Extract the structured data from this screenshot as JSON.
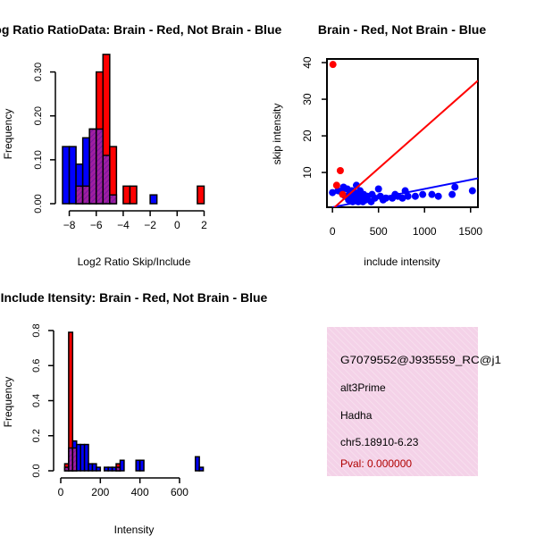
{
  "colors": {
    "red": "#ff0000",
    "blue": "#0000ff",
    "overlap": "#9f1fa0",
    "overlap_hatch": "#6a0f9f",
    "info_bg": "#f4d2e8",
    "info_hatch": "#f8e2ef",
    "pval": "#b00000",
    "axis": "#000000"
  },
  "chart_data": [
    {
      "id": "ratio_hist",
      "type": "bar",
      "subtype": "overlaid-histogram",
      "title": "Log Ratio RatioData: Brain - Red, Not Brain - Blue",
      "xlabel": "Log2 Ratio Skip/Include",
      "ylabel": "Frequency",
      "xlim": [
        -8.5,
        2.3
      ],
      "ylim": [
        0,
        0.35
      ],
      "xticks": [
        -8,
        -6,
        -4,
        -2,
        0,
        2
      ],
      "xtick_labels": [
        "−8",
        "−6",
        "−4",
        "−2",
        "0",
        "2"
      ],
      "yticks": [
        0.0,
        0.1,
        0.2,
        0.3
      ],
      "ytick_labels": [
        "0.00",
        "0.10",
        "0.20",
        "0.30"
      ],
      "bin_edges": [
        -8.5,
        -8.0,
        -7.5,
        -7.0,
        -6.5,
        -6.0,
        -5.5,
        -5.0,
        -4.5,
        -4.0,
        -3.5,
        -3.0,
        -2.5,
        -2.0,
        -1.5,
        -1.0,
        -0.5,
        0.0,
        0.5,
        1.0,
        1.5,
        2.0
      ],
      "series": [
        {
          "name": "Brain",
          "color": "red",
          "values": [
            0,
            0,
            0.04,
            0.04,
            0.17,
            0.3,
            0.34,
            0.13,
            0,
            0.04,
            0.04,
            0,
            0,
            0,
            0,
            0,
            0,
            0,
            0,
            0,
            0.04
          ]
        },
        {
          "name": "Not Brain",
          "color": "blue",
          "values": [
            0.13,
            0.13,
            0.09,
            0.15,
            0.17,
            0.17,
            0.11,
            0.02,
            0,
            0,
            0,
            0,
            0,
            0.02,
            0,
            0,
            0,
            0,
            0,
            0,
            0
          ]
        }
      ]
    },
    {
      "id": "scatter",
      "type": "scatter",
      "title": "Brain - Red, Not Brain - Blue",
      "xlabel": "include intensity",
      "ylabel": "skip intensity",
      "xlim": [
        -60,
        1580
      ],
      "ylim": [
        0.5,
        41
      ],
      "xticks": [
        0,
        500,
        1000,
        1500
      ],
      "xtick_labels": [
        "0",
        "500",
        "1000",
        "1500"
      ],
      "yticks": [
        10,
        20,
        30,
        40
      ],
      "ytick_labels": [
        "10",
        "20",
        "30",
        "40"
      ],
      "series": [
        {
          "name": "Brain",
          "color": "red",
          "points": [
            [
              5,
              39.5
            ],
            [
              45,
              6.5
            ],
            [
              85,
              10.5
            ],
            [
              110,
              4
            ]
          ],
          "fit": {
            "intercept": 0,
            "slope": 0.0222
          }
        },
        {
          "name": "Not Brain",
          "color": "blue",
          "points": [
            [
              0,
              4.5
            ],
            [
              60,
              5
            ],
            [
              100,
              4.5
            ],
            [
              120,
              6
            ],
            [
              140,
              3.5
            ],
            [
              160,
              5.5
            ],
            [
              175,
              2.5
            ],
            [
              190,
              4.5
            ],
            [
              200,
              3
            ],
            [
              210,
              5
            ],
            [
              220,
              2
            ],
            [
              230,
              3.5
            ],
            [
              240,
              4.5
            ],
            [
              250,
              2.5
            ],
            [
              260,
              6.5
            ],
            [
              270,
              3
            ],
            [
              280,
              2
            ],
            [
              290,
              4
            ],
            [
              300,
              5
            ],
            [
              310,
              2.5
            ],
            [
              320,
              3.5
            ],
            [
              330,
              2
            ],
            [
              340,
              4
            ],
            [
              350,
              3
            ],
            [
              360,
              2.5
            ],
            [
              380,
              3.5
            ],
            [
              420,
              2
            ],
            [
              430,
              4
            ],
            [
              460,
              3
            ],
            [
              500,
              5.5
            ],
            [
              520,
              3.5
            ],
            [
              550,
              2.5
            ],
            [
              580,
              3
            ],
            [
              650,
              3
            ],
            [
              680,
              4
            ],
            [
              710,
              3.5
            ],
            [
              760,
              3
            ],
            [
              790,
              5
            ],
            [
              820,
              3.5
            ],
            [
              900,
              3.5
            ],
            [
              980,
              4
            ],
            [
              1080,
              4
            ],
            [
              1150,
              3.5
            ],
            [
              1300,
              4
            ],
            [
              1330,
              6
            ],
            [
              1520,
              5
            ]
          ],
          "fit": {
            "intercept": 0.5,
            "slope": 0.005
          }
        }
      ]
    },
    {
      "id": "intensity_hist",
      "type": "bar",
      "subtype": "overlaid-histogram",
      "title": "Include Itensity: Brain - Red, Not Brain - Blue",
      "xlabel": "Intensity",
      "ylabel": "Frequency",
      "xlim": [
        0,
        740
      ],
      "ylim": [
        0,
        0.8
      ],
      "xticks": [
        0,
        200,
        400,
        600
      ],
      "xtick_labels": [
        "0",
        "200",
        "400",
        "600"
      ],
      "yticks": [
        0.0,
        0.2,
        0.4,
        0.6,
        0.8
      ],
      "ytick_labels": [
        "0.0",
        "0.2",
        "0.4",
        "0.6",
        "0.8"
      ],
      "bin_edges": [
        20,
        40,
        60,
        80,
        100,
        120,
        140,
        160,
        180,
        200,
        220,
        240,
        260,
        280,
        300,
        320,
        340,
        360,
        380,
        400,
        420,
        440,
        460,
        480,
        500,
        520,
        540,
        560,
        580,
        600,
        620,
        640,
        660,
        680,
        700,
        720,
        740
      ],
      "series": [
        {
          "name": "Brain",
          "color": "red",
          "values": [
            0.04,
            0.79,
            0.13,
            0,
            0,
            0,
            0,
            0,
            0,
            0,
            0,
            0,
            0,
            0.04,
            0,
            0,
            0,
            0,
            0,
            0,
            0,
            0,
            0,
            0,
            0,
            0,
            0,
            0,
            0,
            0,
            0,
            0,
            0,
            0,
            0,
            0
          ]
        },
        {
          "name": "Not Brain",
          "color": "blue",
          "values": [
            0.02,
            0.13,
            0.17,
            0.15,
            0.15,
            0.15,
            0.04,
            0.04,
            0.02,
            0,
            0.02,
            0.02,
            0.02,
            0.02,
            0.06,
            0,
            0,
            0,
            0.06,
            0.06,
            0,
            0,
            0,
            0,
            0,
            0,
            0,
            0,
            0,
            0,
            0,
            0,
            0,
            0.08,
            0.02,
            0
          ]
        }
      ]
    }
  ],
  "info": {
    "event_id": "G7079552@J935559_RC@j1",
    "event_type": "alt3Prime",
    "gene": "Hadha",
    "location": "chr5.18910-6.23",
    "pval": "Pval: 0.000000"
  }
}
